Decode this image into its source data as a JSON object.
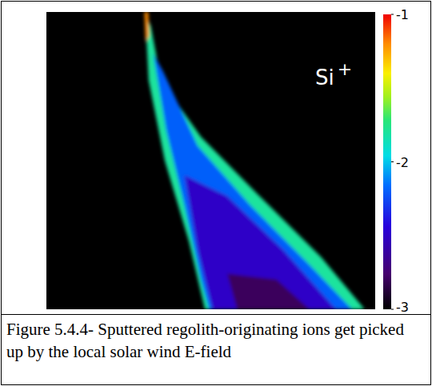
{
  "chart_data": {
    "type": "heatmap",
    "annotation": {
      "text": "Si",
      "superscript": "+"
    },
    "caption": "Figure 5.4.4- Sputtered regolith-originating ions get picked up by the local solar wind E-field",
    "xlim": [
      0,
      1
    ],
    "ylim": [
      0,
      1
    ],
    "tick_labels": false,
    "grid": false,
    "regions": [
      {
        "value": -1.8,
        "x": [
          0.3,
          0.311,
          0.36,
          0.433,
          0.482,
          0.968,
          0.835,
          0.64,
          0.47,
          0.348,
          0.318
        ],
        "y": [
          1.0,
          0.77,
          0.5,
          0.23,
          0.0,
          0.0,
          0.176,
          0.39,
          0.58,
          0.77,
          0.95
        ]
      },
      {
        "value": -2.2,
        "x": [
          0.325,
          0.365,
          0.42,
          0.47,
          0.495,
          0.93,
          0.8,
          0.62,
          0.46,
          0.355
        ],
        "y": [
          0.86,
          0.6,
          0.35,
          0.1,
          0.0,
          0.0,
          0.15,
          0.35,
          0.55,
          0.8
        ]
      },
      {
        "value": -2.5,
        "x": [
          0.42,
          0.46,
          0.505,
          0.88,
          0.72,
          0.55
        ],
        "y": [
          0.45,
          0.2,
          0.0,
          0.0,
          0.2,
          0.38
        ]
      },
      {
        "value": -2.8,
        "x": [
          0.55,
          0.58,
          0.8,
          0.7
        ],
        "y": [
          0.12,
          0.0,
          0.0,
          0.1
        ]
      },
      {
        "value": -1.2,
        "x": [
          0.298,
          0.302,
          0.312,
          0.31
        ],
        "y": [
          1.0,
          0.9,
          0.92,
          1.0
        ]
      }
    ],
    "colorbar_range": [
      -3,
      -1
    ],
    "colorbar_ticks": [
      -1,
      -2,
      -3
    ]
  }
}
